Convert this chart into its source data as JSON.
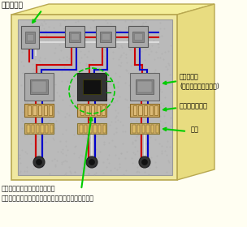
{
  "bg_color": "#fffef2",
  "box_face_color": "#f0e8a0",
  "box_right_color": "#e8dc80",
  "box_top_color": "#f4ee98",
  "inner_bg_color": "#c8c8c8",
  "inner_dots": true,
  "box_edge_color": "#b8a850",
  "title_label": "主スイッチ",
  "label_denki": "電磁接触器\n(マグネットスイッチ)",
  "label_thermal": "サーマルリレー",
  "label_tanshi": "端子",
  "caption_line1": "黒く焼けたマグネットスイッチ",
  "caption_line2": "サーマルリレーをバイパスするように結線されていた",
  "arrow_color": "#00cc00",
  "wire_red": "#cc0000",
  "wire_blue": "#0000cc",
  "wire_white": "#dddddd",
  "wire_green": "#009900",
  "figsize": [
    3.04,
    2.8
  ],
  "dpi": 100
}
